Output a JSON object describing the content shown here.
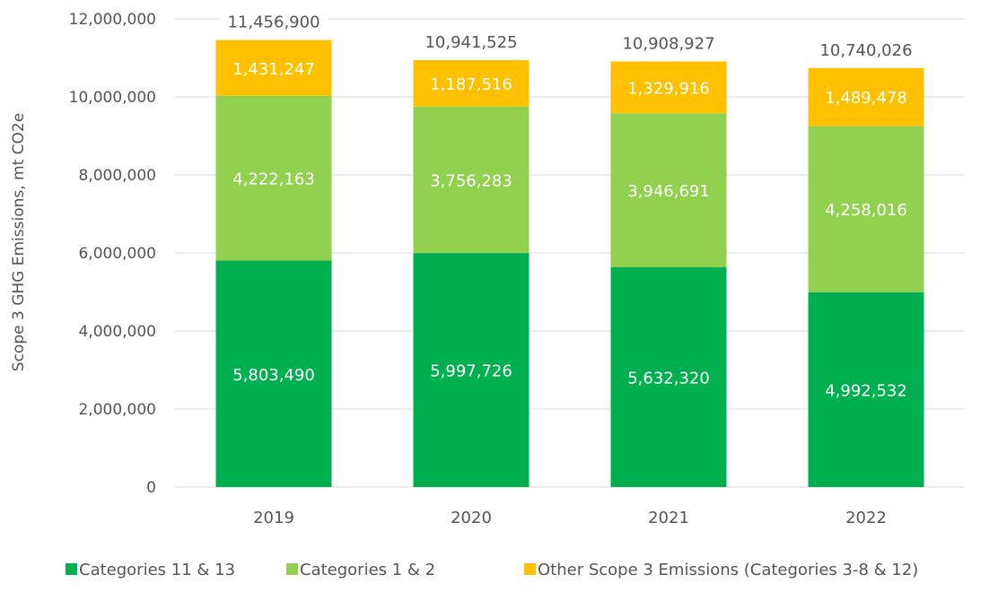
{
  "chart_data": {
    "type": "bar",
    "stacked": true,
    "title": "",
    "xlabel": "",
    "ylabel": "Scope 3 GHG Emissions, mt CO2e",
    "ylim": [
      0,
      12000000
    ],
    "yticks": [
      0,
      2000000,
      4000000,
      6000000,
      8000000,
      10000000,
      12000000
    ],
    "ytick_labels": [
      "0",
      "2,000,000",
      "4,000,000",
      "6,000,000",
      "8,000,000",
      "10,000,000",
      "12,000,000"
    ],
    "grid": true,
    "legend_position": "bottom",
    "categories": [
      "2019",
      "2020",
      "2021",
      "2022"
    ],
    "series": [
      {
        "name": "Categories 11 & 13",
        "color": "#00b050",
        "values": [
          5803490,
          5997726,
          5632320,
          4992532
        ],
        "labels": [
          "5,803,490",
          "5,997,726",
          "5,632,320",
          "4,992,532"
        ]
      },
      {
        "name": "Categories 1 & 2",
        "color": "#92d050",
        "values": [
          4222163,
          3756283,
          3946691,
          4258016
        ],
        "labels": [
          "4,222,163",
          "3,756,283",
          "3,946,691",
          "4,258,016"
        ]
      },
      {
        "name": "Other Scope 3 Emissions (Categories 3-8 & 12)",
        "color": "#ffc000",
        "values": [
          1431247,
          1187516,
          1329916,
          1489478
        ],
        "labels": [
          "1,431,247",
          "1,187,516",
          "1,329,916",
          "1,489,478"
        ]
      }
    ],
    "totals": [
      11456900,
      10941525,
      10908927,
      10740026
    ],
    "total_labels": [
      "11,456,900",
      "10,941,525",
      "10,908,927",
      "10,740,026"
    ]
  }
}
